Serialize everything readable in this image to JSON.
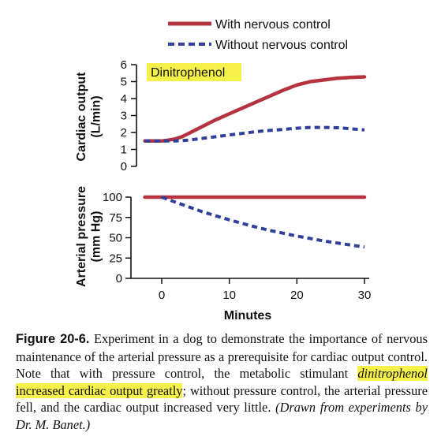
{
  "colors": {
    "with_control": "#b5333f",
    "without_control": "#2f3f9a",
    "highlight": "#f6f04a"
  },
  "legend": [
    {
      "label": "With nervous control",
      "style": "solid",
      "color": "#b5333f"
    },
    {
      "label": "Without nervous control",
      "style": "dashed",
      "color": "#2f3f9a"
    }
  ],
  "annotation": "Dinitrophenol",
  "chart_data": [
    {
      "type": "line",
      "ylabel": "Cardiac output\n(L/min)",
      "ylim": [
        0,
        6
      ],
      "yticks": [
        0,
        1,
        2,
        3,
        4,
        5,
        6
      ],
      "xlim": [
        -3,
        30.5
      ],
      "series": [
        {
          "name": "With nervous control",
          "style": "solid",
          "color": "#b5333f",
          "x": [
            -2.5,
            0,
            1,
            2,
            3,
            4,
            6,
            8,
            10,
            12,
            14,
            16,
            18,
            20,
            22,
            24,
            26,
            28,
            30
          ],
          "y": [
            1.5,
            1.5,
            1.55,
            1.62,
            1.75,
            1.95,
            2.35,
            2.75,
            3.1,
            3.45,
            3.8,
            4.15,
            4.5,
            4.8,
            5.0,
            5.1,
            5.2,
            5.25,
            5.28
          ]
        },
        {
          "name": "Without nervous control",
          "style": "dashed",
          "color": "#2f3f9a",
          "x": [
            -2.5,
            0,
            2,
            4,
            6,
            8,
            10,
            12,
            14,
            16,
            18,
            20,
            22,
            24,
            26,
            28,
            30
          ],
          "y": [
            1.5,
            1.5,
            1.5,
            1.55,
            1.65,
            1.75,
            1.85,
            1.95,
            2.05,
            2.12,
            2.18,
            2.25,
            2.3,
            2.3,
            2.28,
            2.22,
            2.15
          ]
        }
      ]
    },
    {
      "type": "line",
      "ylabel": "Arterial pressure\n(mm Hg)",
      "xlabel": "Minutes",
      "ylim": [
        0,
        100
      ],
      "yticks": [
        0,
        25,
        50,
        75,
        100
      ],
      "xlim": [
        -3,
        30.5
      ],
      "xticks": [
        0,
        10,
        20,
        30
      ],
      "series": [
        {
          "name": "With nervous control",
          "style": "solid",
          "color": "#b5333f",
          "x": [
            -2.5,
            30
          ],
          "y": [
            100,
            100
          ]
        },
        {
          "name": "Without nervous control",
          "style": "dashed",
          "color": "#2f3f9a",
          "x": [
            0,
            1,
            2,
            4,
            6,
            8,
            10,
            12,
            14,
            16,
            18,
            20,
            22,
            24,
            26,
            28,
            30
          ],
          "y": [
            100,
            97,
            94,
            88,
            82,
            77,
            72,
            67.5,
            63,
            59,
            55.5,
            52,
            49,
            46,
            43.5,
            41,
            38.5
          ]
        }
      ]
    }
  ],
  "caption": {
    "label": "Figure 20-6.",
    "text_before": " Experiment in a dog to demonstrate the importance of nervous maintenance of the arterial pressure as a prerequisite for cardiac output control. Note that with pressure control, the metabolic stimulant ",
    "highlight_italic": "dinitrophenol",
    "highlight_rest": " increased cardiac output greatly",
    "text_after": "; without pressure control, the arterial pressure fell, and the cardiac output increased very little. ",
    "credit": "(Drawn from experiments by Dr. M. Banet.)"
  }
}
